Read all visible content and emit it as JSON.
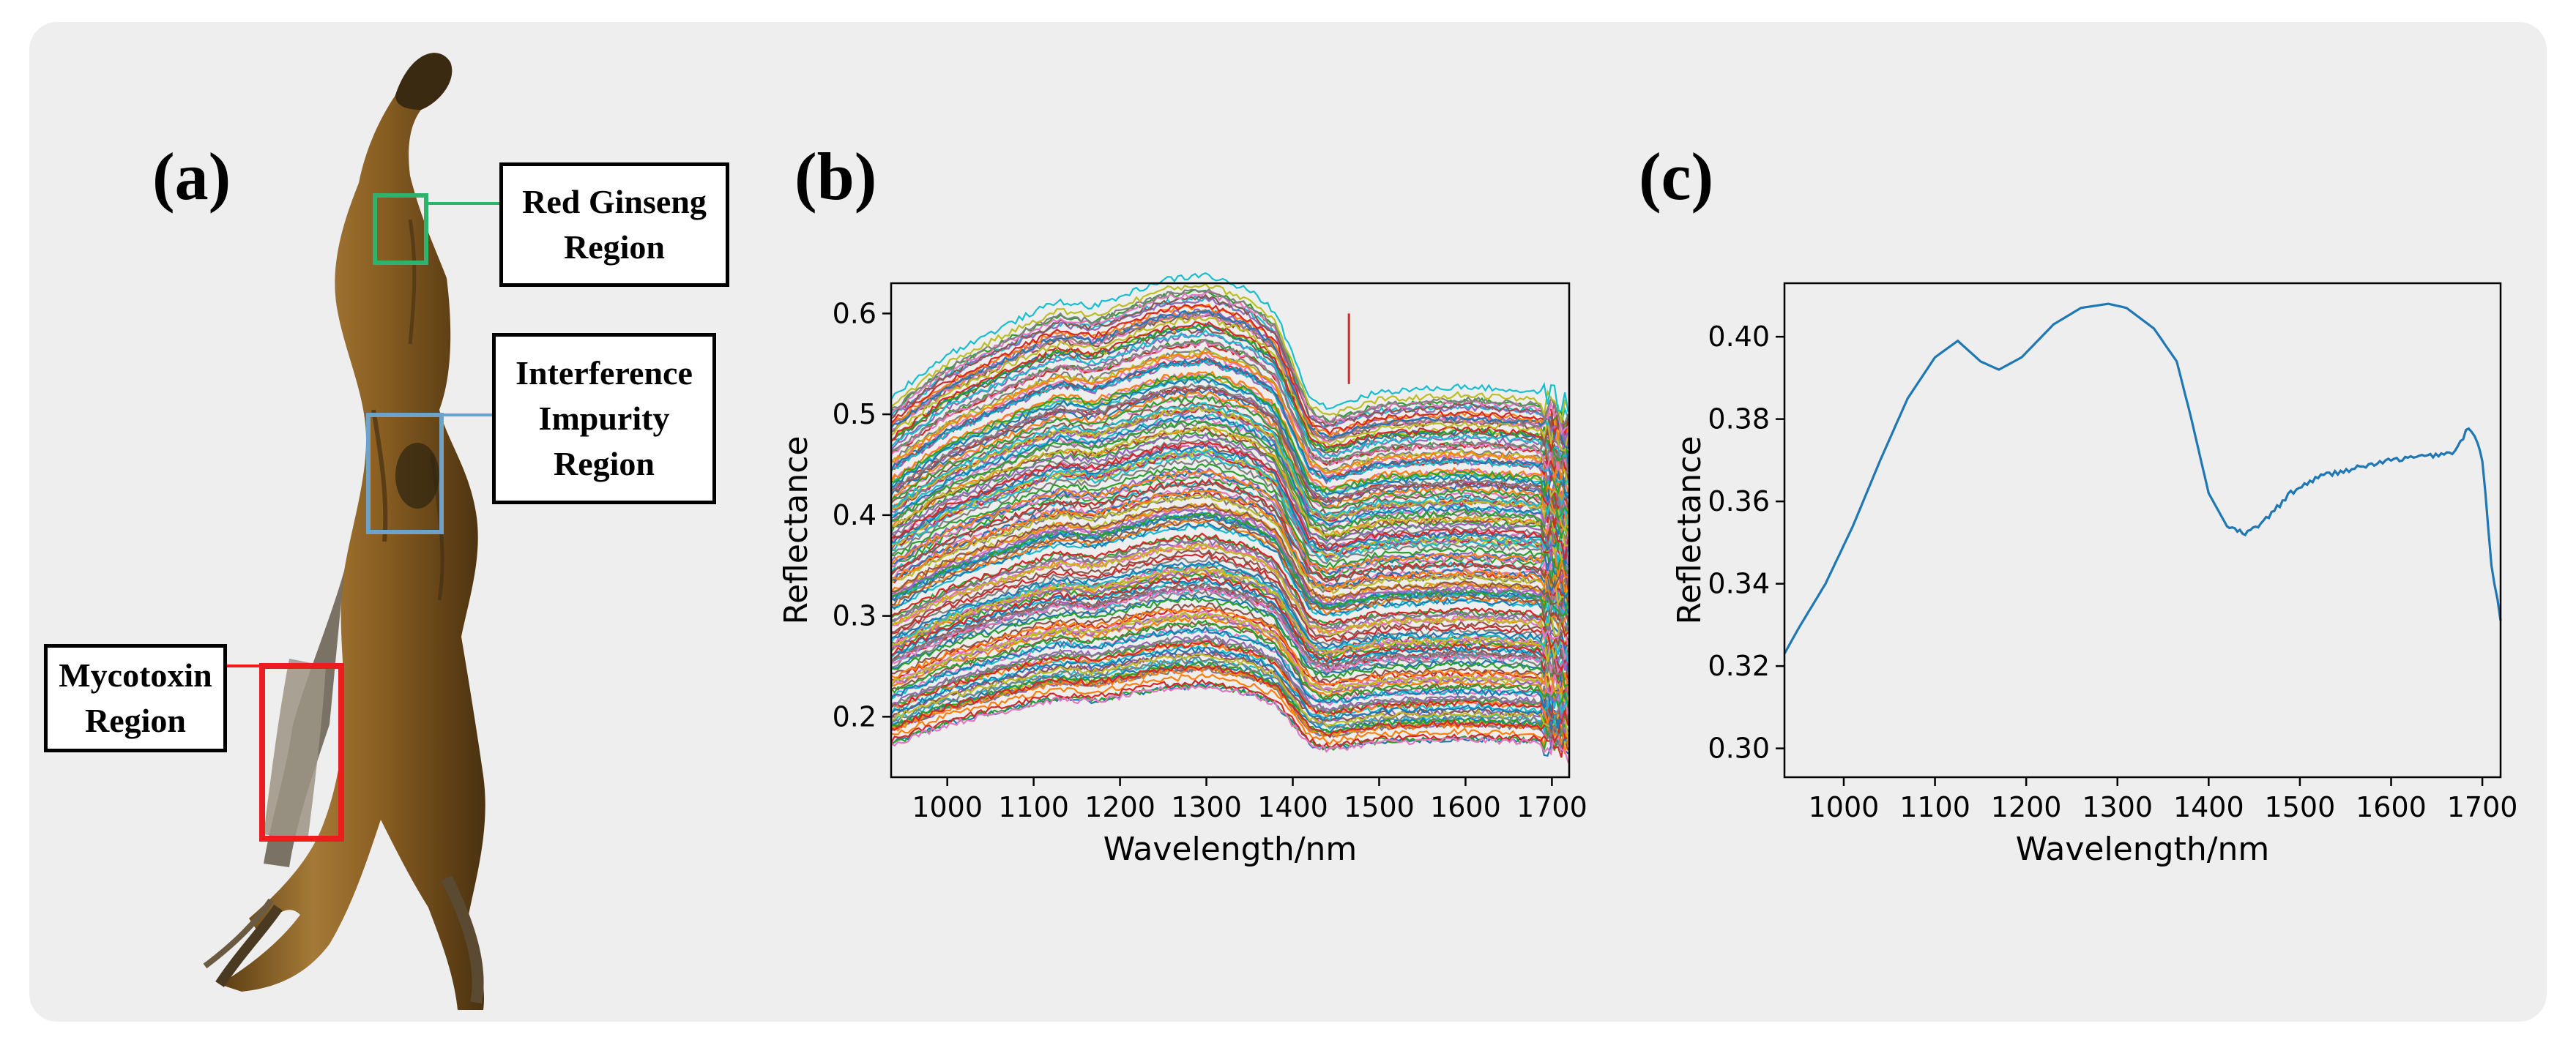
{
  "panels": {
    "a": {
      "label": "(a)"
    },
    "b": {
      "label": "(b)"
    },
    "c": {
      "label": "(c)"
    }
  },
  "regions": {
    "red_ginseng": {
      "line1": "Red Ginseng",
      "line2": "Region",
      "color": "#2db36b"
    },
    "interference": {
      "line1": "Interference",
      "line2": "Impurity",
      "line3": "Region",
      "color": "#6fa2c8"
    },
    "mycotoxin": {
      "line1": "Mycotoxin",
      "line2": "Region",
      "color": "#ee1c1c"
    }
  },
  "colors": {
    "tab10": [
      "#1f77b4",
      "#ff7f0e",
      "#2ca02c",
      "#d62728",
      "#9467bd",
      "#8c564b",
      "#e377c2",
      "#7f7f7f",
      "#bcbd22",
      "#17becf"
    ]
  },
  "chart_data": [
    {
      "type": "line",
      "panel": "b",
      "title": "",
      "xlabel": "Wavelength/nm",
      "ylabel": "Reflectance",
      "xlim": [
        935,
        1720
      ],
      "ylim": [
        0.14,
        0.63
      ],
      "xticks": [
        1000,
        1100,
        1200,
        1300,
        1400,
        1500,
        1600,
        1700
      ],
      "yticks": [
        0.2,
        0.3,
        0.4,
        0.5,
        0.6
      ],
      "series_count": 180,
      "reflectance_range": [
        0.17,
        0.61
      ],
      "spike": {
        "x": 1465,
        "y": 0.6
      }
    },
    {
      "type": "line",
      "panel": "c",
      "title": "",
      "xlabel": "Wavelength/nm",
      "ylabel": "Reflectance",
      "xlim": [
        935,
        1720
      ],
      "ylim": [
        0.293,
        0.413
      ],
      "xticks": [
        1000,
        1100,
        1200,
        1300,
        1400,
        1500,
        1600,
        1700
      ],
      "yticks": [
        0.3,
        0.32,
        0.34,
        0.36,
        0.38,
        0.4
      ],
      "color": "#1f77b4",
      "x": [
        935,
        950,
        980,
        1010,
        1040,
        1070,
        1100,
        1125,
        1150,
        1170,
        1195,
        1230,
        1260,
        1290,
        1310,
        1340,
        1365,
        1380,
        1400,
        1420,
        1440,
        1460,
        1490,
        1520,
        1560,
        1600,
        1640,
        1670,
        1685,
        1695,
        1700,
        1710,
        1720
      ],
      "y": [
        0.323,
        0.329,
        0.34,
        0.354,
        0.37,
        0.385,
        0.395,
        0.399,
        0.394,
        0.392,
        0.395,
        0.403,
        0.407,
        0.408,
        0.407,
        0.402,
        0.394,
        0.381,
        0.362,
        0.354,
        0.352,
        0.355,
        0.362,
        0.366,
        0.368,
        0.37,
        0.371,
        0.372,
        0.378,
        0.374,
        0.37,
        0.345,
        0.331
      ],
      "xaxis_label": "Wavelength/nm",
      "yaxis_label": "Reflectance"
    }
  ]
}
